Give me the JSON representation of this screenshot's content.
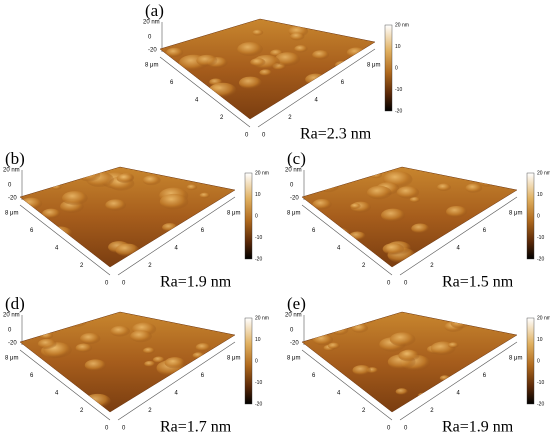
{
  "panels": [
    {
      "label": "(a)",
      "ra": "Ra=2.3 nm",
      "z_axis": [
        "20 nm",
        "0",
        "-20"
      ],
      "left_axis": [
        "8 μm",
        "6",
        "4",
        "2",
        "0"
      ],
      "right_axis": [
        "0",
        "2",
        "4",
        "6",
        "8 μm"
      ],
      "colorbar": [
        "20 nm",
        "10",
        "0",
        "-10",
        "-20"
      ]
    },
    {
      "label": "(b)",
      "ra": "Ra=1.9 nm",
      "z_axis": [
        "20 nm",
        "0",
        "-20"
      ],
      "left_axis": [
        "8 μm",
        "6",
        "4",
        "2",
        "0"
      ],
      "right_axis": [
        "0",
        "2",
        "4",
        "6",
        "8 μm"
      ],
      "colorbar": [
        "20 nm",
        "10",
        "0",
        "-10",
        "-20"
      ]
    },
    {
      "label": "(c)",
      "ra": "Ra=1.5 nm",
      "z_axis": [
        "20 nm",
        "0",
        "-20"
      ],
      "left_axis": [
        "8 μm",
        "6",
        "4",
        "2",
        "0"
      ],
      "right_axis": [
        "0",
        "2",
        "4",
        "6",
        "8 μm"
      ],
      "colorbar": [
        "20 nm",
        "10",
        "0",
        "-10",
        "-20"
      ]
    },
    {
      "label": "(d)",
      "ra": "Ra=1.7 nm",
      "z_axis": [
        "20 nm",
        "0",
        "-20"
      ],
      "left_axis": [
        "8 μm",
        "6",
        "4",
        "2",
        "0"
      ],
      "right_axis": [
        "0",
        "2",
        "4",
        "6",
        "8 μm"
      ],
      "colorbar": [
        "20 nm",
        "10",
        "0",
        "-10",
        "-20"
      ]
    },
    {
      "label": "(e)",
      "ra": "Ra=1.9 nm",
      "z_axis": [
        "20 nm",
        "0",
        "-20"
      ],
      "left_axis": [
        "8 μm",
        "6",
        "4",
        "2",
        "0"
      ],
      "right_axis": [
        "0",
        "2",
        "4",
        "6",
        "8 μm"
      ],
      "colorbar": [
        "20 nm",
        "10",
        "0",
        "-10",
        "-20"
      ]
    }
  ]
}
